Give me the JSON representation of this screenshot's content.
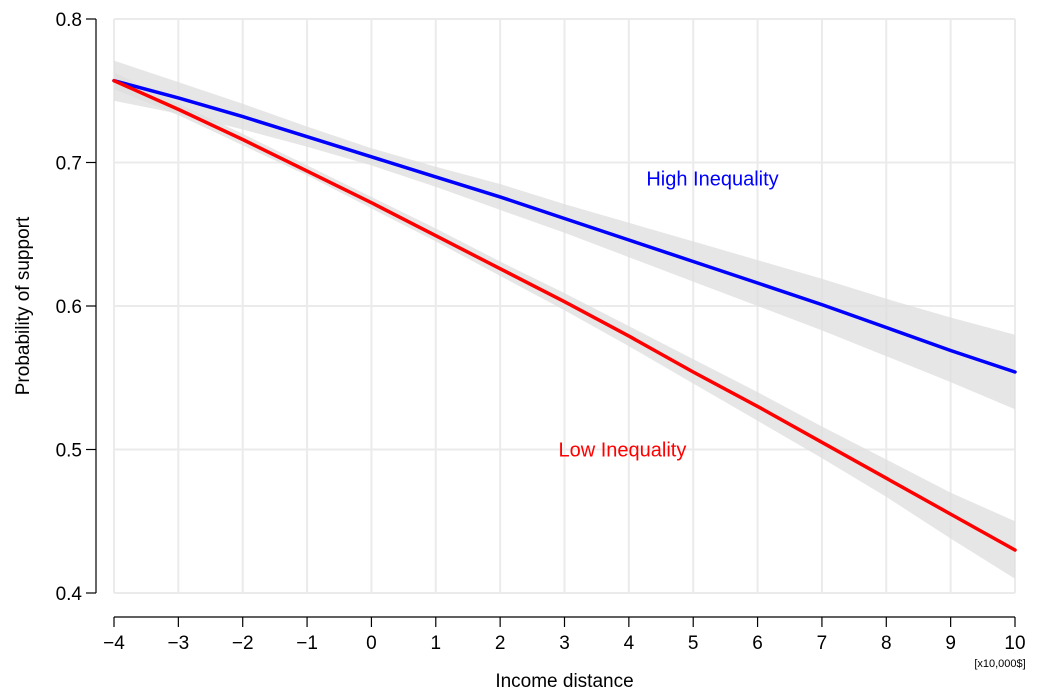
{
  "chart_data": {
    "type": "line",
    "title": "",
    "xlabel": "Income distance",
    "x_unit_note": "[x10,000$]",
    "ylabel": "Probability of support",
    "xlim": [
      -4,
      10
    ],
    "ylim": [
      0.4,
      0.8
    ],
    "x_ticks": [
      -4,
      -3,
      -2,
      -1,
      0,
      1,
      2,
      3,
      4,
      5,
      6,
      7,
      8,
      9,
      10
    ],
    "x_tick_labels": [
      "−4",
      "−3",
      "−2",
      "−1",
      "0",
      "1",
      "2",
      "3",
      "4",
      "5",
      "6",
      "7",
      "8",
      "9",
      "10"
    ],
    "y_ticks": [
      0.4,
      0.5,
      0.6,
      0.7,
      0.8
    ],
    "y_tick_labels": [
      "0.4",
      "0.5",
      "0.6",
      "0.7",
      "0.8"
    ],
    "grid": true,
    "confidence_band_color": "#dddddd",
    "series": [
      {
        "name": "High Inequality",
        "color": "#0000ff",
        "x": [
          -4,
          -3,
          -2,
          -1,
          0,
          1,
          2,
          3,
          4,
          5,
          6,
          7,
          8,
          9,
          10
        ],
        "y": [
          0.757,
          0.745,
          0.732,
          0.718,
          0.704,
          0.69,
          0.676,
          0.661,
          0.646,
          0.631,
          0.616,
          0.601,
          0.585,
          0.569,
          0.554
        ],
        "lower": [
          0.743,
          0.734,
          0.723,
          0.711,
          0.698,
          0.683,
          0.667,
          0.651,
          0.634,
          0.617,
          0.6,
          0.583,
          0.565,
          0.547,
          0.528
        ],
        "upper": [
          0.771,
          0.756,
          0.741,
          0.725,
          0.71,
          0.697,
          0.685,
          0.671,
          0.658,
          0.645,
          0.632,
          0.619,
          0.605,
          0.592,
          0.58
        ],
        "label_at": [
          5.3,
          0.684
        ]
      },
      {
        "name": "Low Inequality",
        "color": "#ff0000",
        "x": [
          -4,
          -3,
          -2,
          -1,
          0,
          1,
          2,
          3,
          4,
          5,
          6,
          7,
          8,
          9,
          10
        ],
        "y": [
          0.757,
          0.737,
          0.716,
          0.694,
          0.672,
          0.649,
          0.626,
          0.603,
          0.579,
          0.554,
          0.53,
          0.505,
          0.48,
          0.455,
          0.43
        ],
        "lower": [
          0.751,
          0.733,
          0.712,
          0.691,
          0.668,
          0.645,
          0.621,
          0.597,
          0.572,
          0.546,
          0.52,
          0.494,
          0.467,
          0.438,
          0.41
        ],
        "upper": [
          0.763,
          0.741,
          0.72,
          0.698,
          0.676,
          0.654,
          0.631,
          0.609,
          0.586,
          0.563,
          0.54,
          0.516,
          0.493,
          0.47,
          0.45
        ],
        "label_at": [
          3.9,
          0.495
        ]
      }
    ]
  }
}
